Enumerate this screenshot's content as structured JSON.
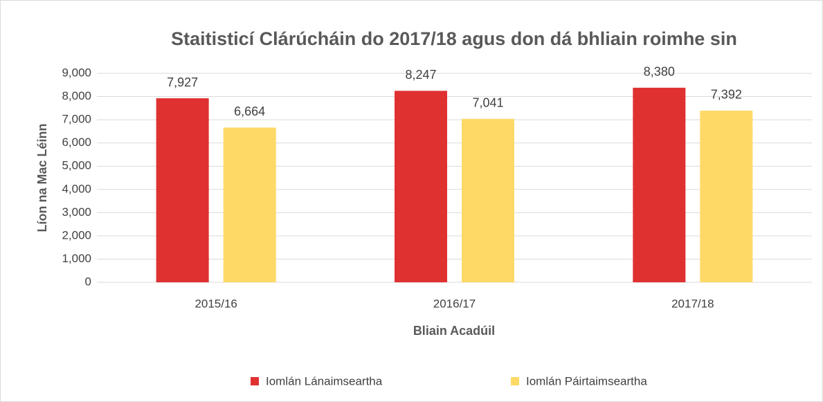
{
  "chart_data": {
    "type": "bar",
    "title": "Staitisticí Clárúcháin do 2017/18 agus don dá bhliain roimhe sin",
    "x_label": "Bliain Acadúil",
    "y_label": "Líon na Mac Léinn",
    "categories": [
      "2015/16",
      "2016/17",
      "2017/18"
    ],
    "series": [
      {
        "name": "Iomlán Lánaimseartha",
        "color": "#e03131",
        "values": [
          7927,
          8247,
          8380
        ],
        "value_labels": [
          "7,927",
          "8,247",
          "8,380"
        ]
      },
      {
        "name": "Iomlán Páirtaimseartha",
        "color": "#ffd966",
        "values": [
          6664,
          7041,
          7392
        ],
        "value_labels": [
          "6,664",
          "7,041",
          "7,392"
        ]
      }
    ],
    "ylim": [
      0,
      9000
    ],
    "yticks": [
      0,
      {
        "value": 1000,
        "label": "1,000"
      },
      {
        "value": 2000,
        "label": "2,000"
      },
      {
        "value": 3000,
        "label": "3,000"
      },
      {
        "value": 4000,
        "label": "4,000"
      },
      {
        "value": 5000,
        "label": "5,000"
      },
      {
        "value": 6000,
        "label": "6,000"
      },
      {
        "value": 7000,
        "label": "7,000"
      },
      {
        "value": 8000,
        "label": "8,000"
      },
      {
        "value": 9000,
        "label": "9,000"
      }
    ],
    "grid": true
  }
}
